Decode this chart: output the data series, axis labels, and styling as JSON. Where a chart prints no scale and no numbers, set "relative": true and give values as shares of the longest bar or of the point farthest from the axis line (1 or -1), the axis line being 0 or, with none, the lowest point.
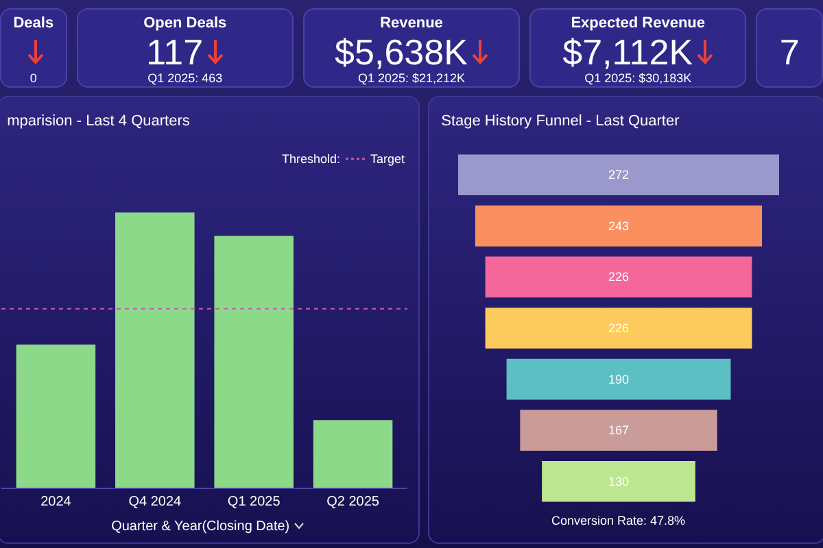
{
  "chart_data": [
    {
      "type": "other",
      "categories": [
        "Deals",
        "Open Deals",
        "Revenue",
        "Expected Revenue",
        null
      ],
      "value_labels": [
        null,
        "117",
        "$5,638K",
        "$7,112K",
        "7"
      ],
      "annotations": [
        "0",
        "Q1 2025: 463",
        "Q1 2025: $21,212K",
        "Q1 2025: $30,183K",
        null
      ]
    },
    {
      "type": "bar",
      "title": "mparision - Last 4 Quarters",
      "xlabel": "Quarter & Year(Closing Date)",
      "relative": true,
      "categories": [
        "2024",
        "Q4 2024",
        "Q1 2025",
        "Q2 2025"
      ],
      "values": [
        0.52,
        1,
        0.915,
        0.246
      ],
      "color": "#8dd98a",
      "legend_title": "Threshold:",
      "ref_lines": [
        {
          "axis": "y",
          "value": 0.65,
          "label": "Target",
          "color": "#c85aa8",
          "line_style": "dotted"
        }
      ]
    },
    {
      "type": "other",
      "title": "Stage History Funnel - Last Quarter",
      "categories": [
        null,
        null,
        null,
        null,
        null,
        null,
        null
      ],
      "values": [
        272,
        243,
        226,
        226,
        190,
        167,
        130
      ],
      "data_labels": true,
      "colors": [
        "#9b98cc",
        "#fa8f60",
        "#f3679b",
        "#fdcb5c",
        "#5bbfc4",
        "#c99c9a",
        "#bce690"
      ],
      "annotations": [
        "Conversion Rate: 47.8%"
      ]
    }
  ]
}
